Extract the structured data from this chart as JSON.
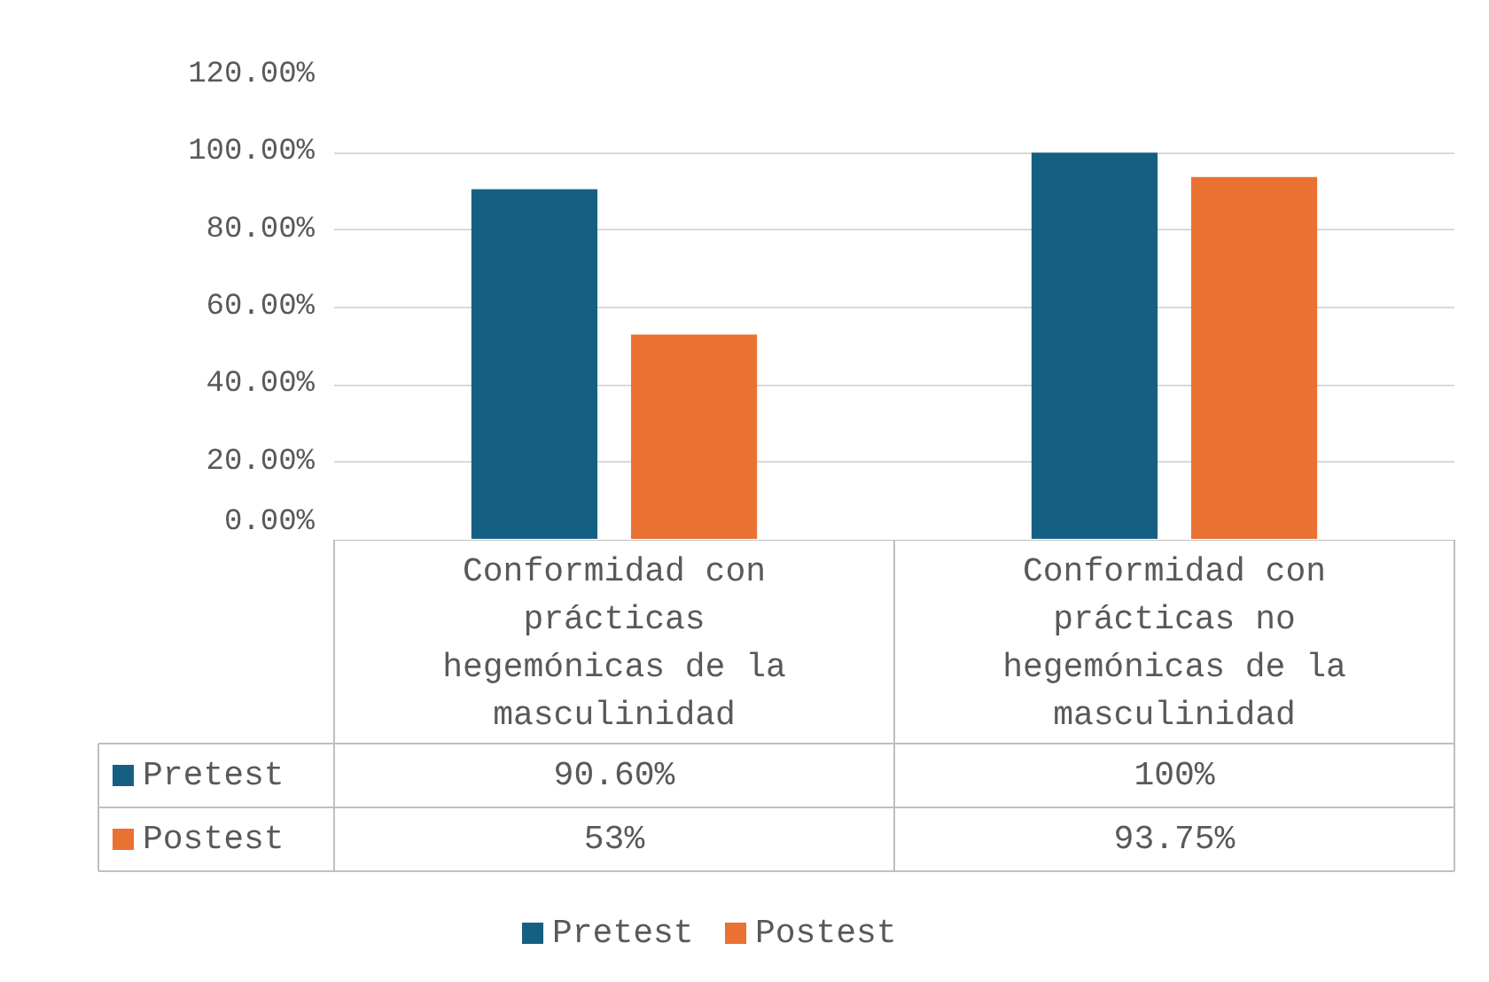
{
  "chart_data": {
    "type": "bar",
    "categories": [
      "Conformidad con prácticas hegemónicas de la masculinidad",
      "Conformidad con prácticas no hegemónicas de la masculinidad"
    ],
    "series": [
      {
        "name": "Pretest",
        "color": "#156082",
        "values": [
          90.6,
          100
        ],
        "value_labels": [
          "90.60%",
          "100%"
        ]
      },
      {
        "name": "Postest",
        "color": "#e97132",
        "values": [
          53,
          93.75
        ],
        "value_labels": [
          "53%",
          "93.75%"
        ]
      }
    ],
    "ylim": [
      0,
      120
    ],
    "yticks": [
      {
        "value": 0,
        "label": "0.00%"
      },
      {
        "value": 20,
        "label": "20.00%"
      },
      {
        "value": 40,
        "label": "40.00%"
      },
      {
        "value": 60,
        "label": "60.00%"
      },
      {
        "value": 80,
        "label": "80.00%"
      },
      {
        "value": 100,
        "label": "100.00%"
      },
      {
        "value": 120,
        "label": "120.00%"
      }
    ],
    "grid": "y",
    "legend": "bottom"
  }
}
